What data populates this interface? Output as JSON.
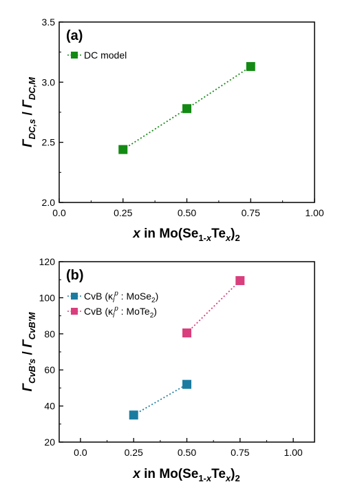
{
  "chart_data": [
    {
      "type": "scatter",
      "panel_label": "(a)",
      "xlim": [
        0.0,
        1.0
      ],
      "ylim": [
        2.0,
        3.5
      ],
      "xticks": [
        "0.0",
        "0.25",
        "0.50",
        "0.75",
        "1.00"
      ],
      "xtick_values": [
        0.0,
        0.25,
        0.5,
        0.75,
        1.0
      ],
      "yticks": [
        "2.0",
        "2.5",
        "3.0",
        "3.5"
      ],
      "ytick_values": [
        2.0,
        2.5,
        3.0,
        3.5
      ],
      "xlabel": {
        "x": "x",
        "rest": " in Mo(Se",
        "sub1": "1-",
        "subx": "x",
        "te": "Te",
        "tex": "x",
        "close": ")",
        "two": "2"
      },
      "ylabel": {
        "g1": "Γ",
        "s1": "DC,s",
        "slash": " / ",
        "g2": "Γ",
        "s2": "DC,M"
      },
      "legend_placement": "top-left",
      "series": [
        {
          "name": "DC model",
          "color": "#138a13",
          "x": [
            0.25,
            0.5,
            0.75
          ],
          "y": [
            2.44,
            2.78,
            3.13
          ]
        }
      ]
    },
    {
      "type": "scatter",
      "panel_label": "(b)",
      "xlim": [
        -0.1,
        1.1
      ],
      "ylim": [
        20,
        120
      ],
      "xticks": [
        "0.0",
        "0.25",
        "0.50",
        "0.75",
        "1.00"
      ],
      "xtick_values": [
        0.0,
        0.25,
        0.5,
        0.75,
        1.0
      ],
      "yticks": [
        "20",
        "40",
        "60",
        "80",
        "100",
        "120"
      ],
      "ytick_values": [
        20,
        40,
        60,
        80,
        100,
        120
      ],
      "xlabel": {
        "x": "x",
        "rest": " in Mo(Se",
        "sub1": "1-",
        "subx": "x",
        "te": "Te",
        "tex": "x",
        "close": ")",
        "two": "2"
      },
      "ylabel": {
        "g1": "Γ",
        "s1": "CvB's",
        "slash": " / ",
        "g2": "Γ",
        "s2": "CvB'M"
      },
      "legend_placement": "top-left",
      "series": [
        {
          "name": "CvB (κ",
          "name_sub": "l",
          "name_sup": "p",
          "name_rest": " : MoSe",
          "name_sub2": "2",
          "name_end": ")",
          "color": "#1b7ca0",
          "x": [
            0.25,
            0.5
          ],
          "y": [
            35,
            52
          ]
        },
        {
          "name": "CvB (κ",
          "name_sub": "l",
          "name_sup": "p",
          "name_rest": " : MoTe",
          "name_sub2": "2",
          "name_end": ")",
          "color": "#d93f7d",
          "x": [
            0.5,
            0.75
          ],
          "y": [
            80.5,
            109.5
          ]
        }
      ]
    }
  ]
}
